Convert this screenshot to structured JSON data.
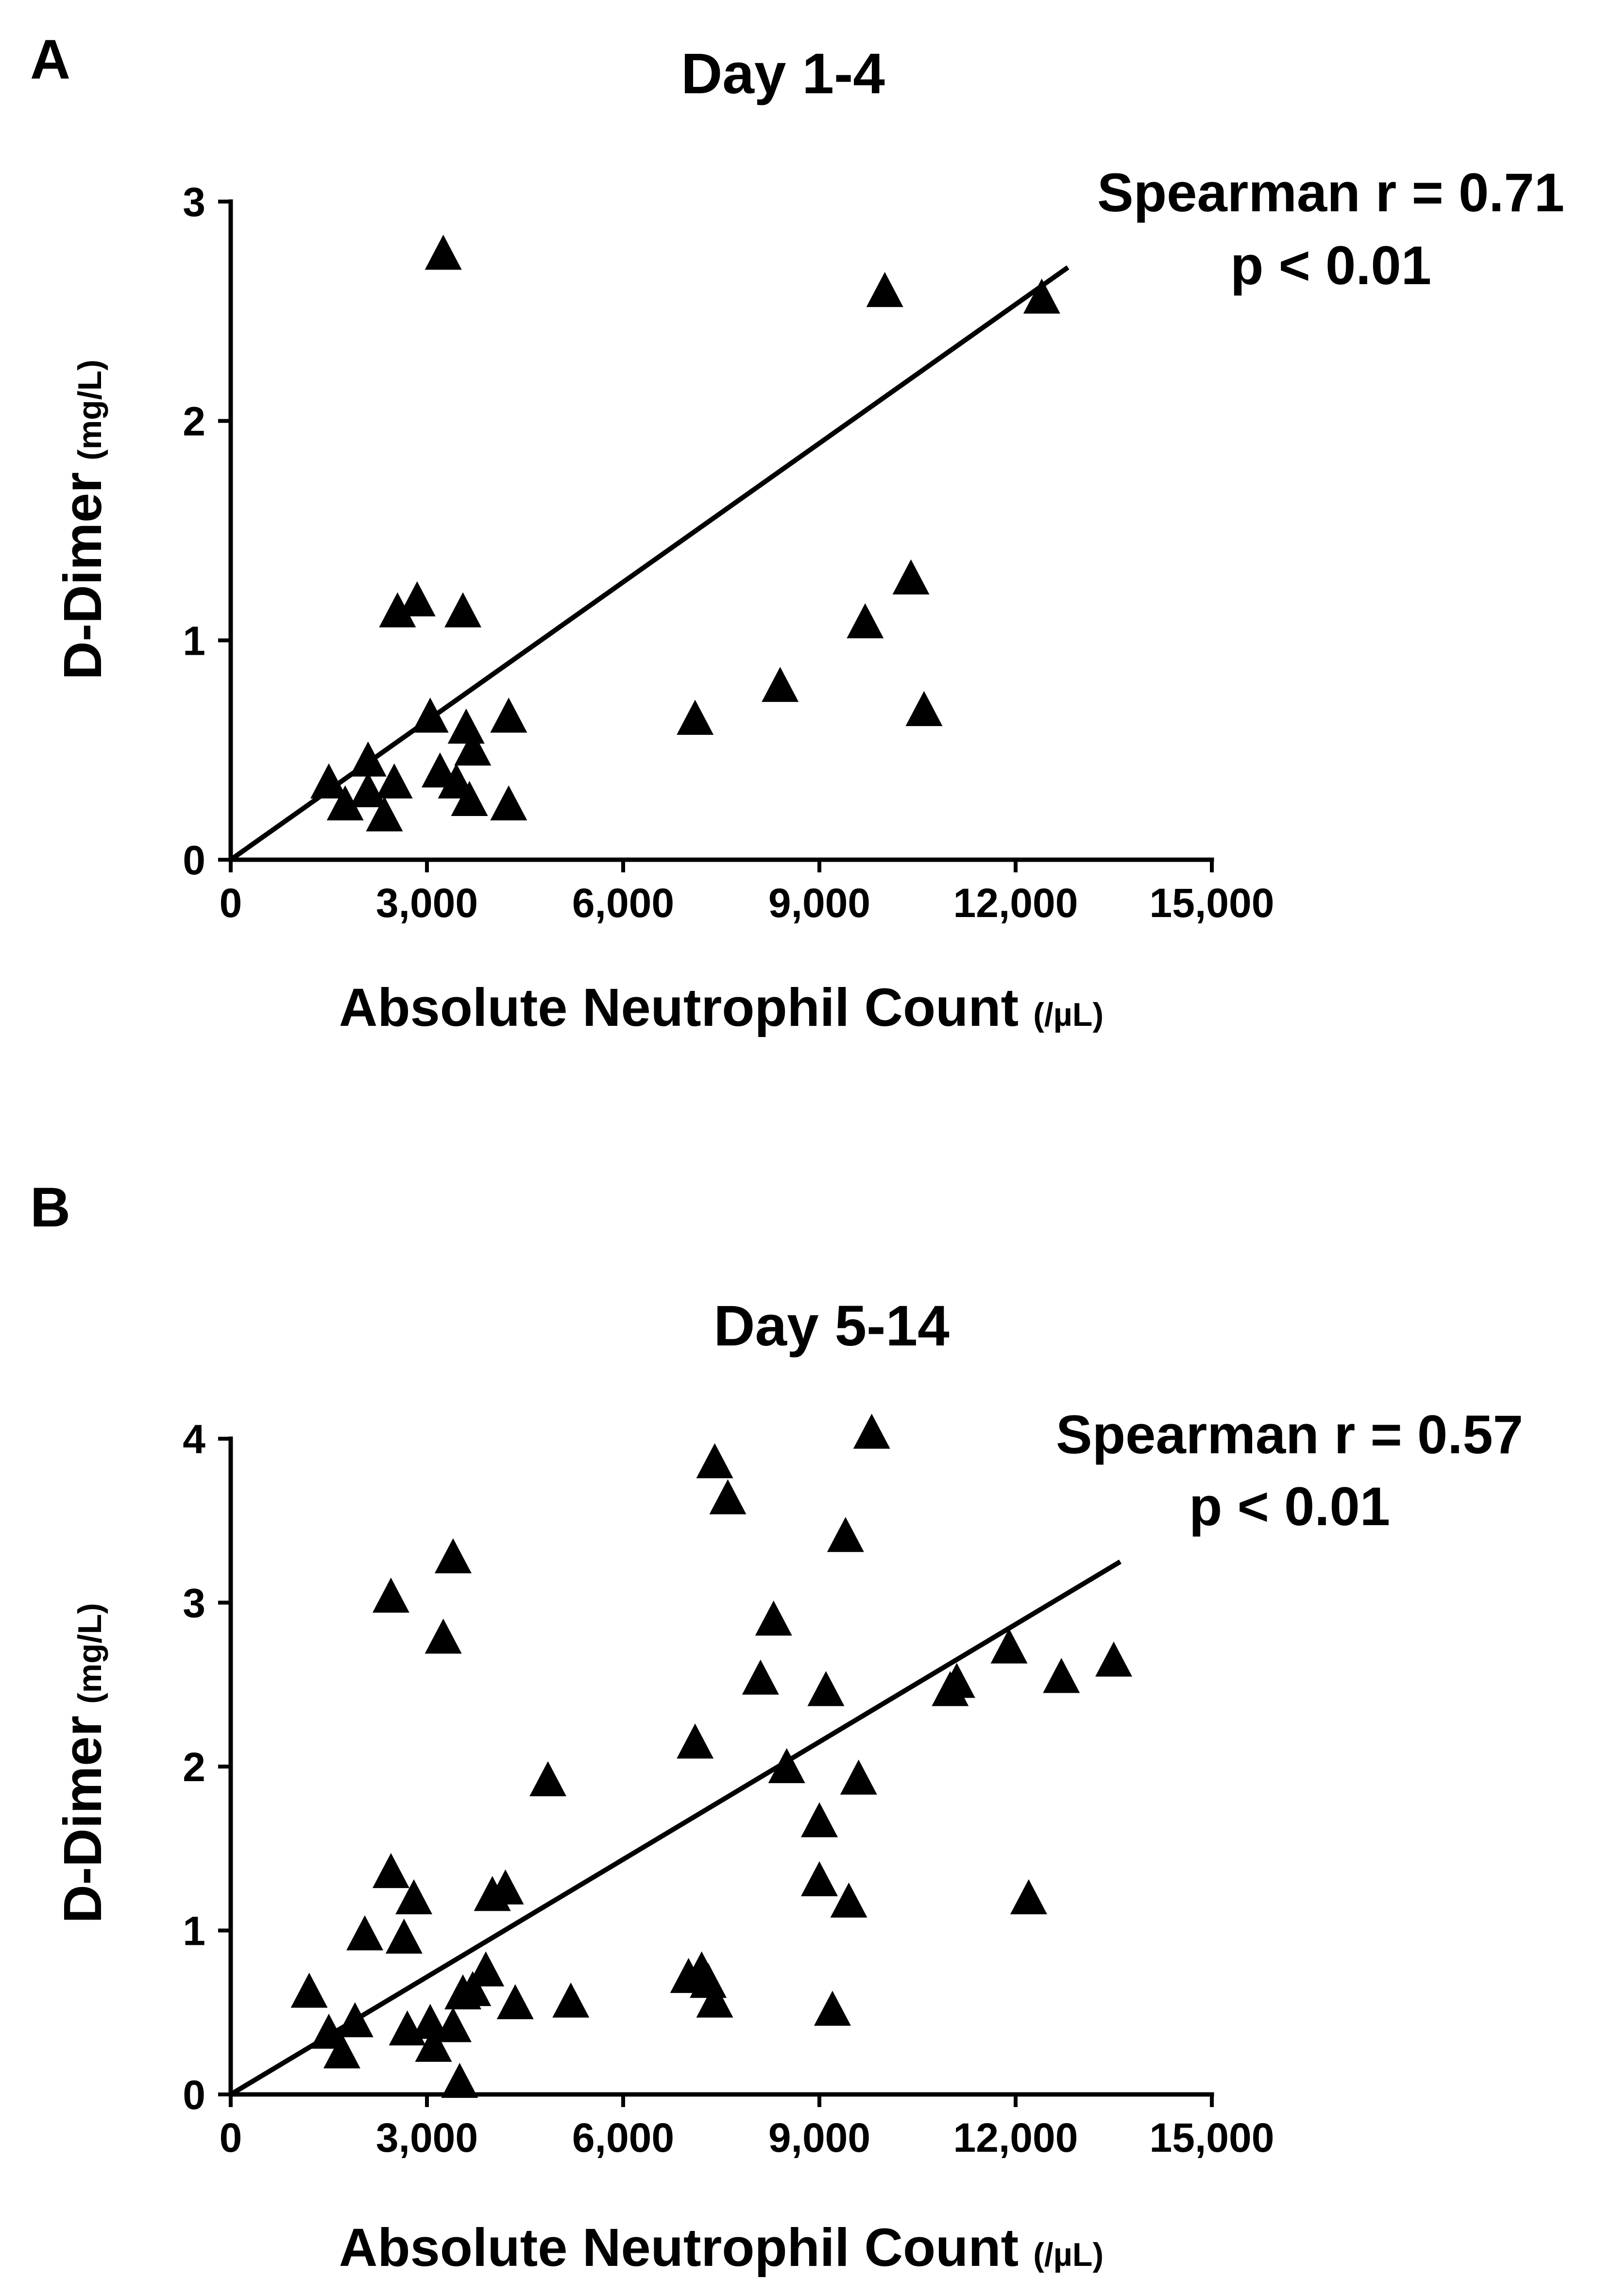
{
  "chart_data": [
    {
      "type": "scatter",
      "panel": "A",
      "title": "Day 1-4",
      "annotation": [
        "Spearman r = 0.71",
        "p < 0.01"
      ],
      "xlabel": "Absolute Neutrophil Count",
      "xlabel_unit": "(/µL)",
      "ylabel": "D-Dimer",
      "ylabel_unit": "(mg/L)",
      "xlim": [
        0,
        15000
      ],
      "ylim": [
        0,
        3
      ],
      "xticks": [
        0,
        3000,
        6000,
        9000,
        12000,
        15000
      ],
      "xtick_labels": [
        "0",
        "3,000",
        "6,000",
        "9,000",
        "12,000",
        "15,000"
      ],
      "yticks": [
        0,
        1,
        2,
        3
      ],
      "ytick_labels": [
        "0",
        "1",
        "2",
        "3"
      ],
      "marker": "triangle",
      "fit_line": {
        "x": [
          0,
          12800
        ],
        "y": [
          0,
          2.7
        ]
      },
      "series": [
        {
          "name": "Day 1-4",
          "x": [
            3250,
            10000,
            12400,
            2550,
            2850,
            3550,
            10400,
            9700,
            8400,
            7100,
            10600,
            1500,
            2100,
            1750,
            2100,
            2500,
            2350,
            3050,
            3200,
            3450,
            3600,
            3700,
            3650,
            4250,
            4250
          ],
          "y": [
            2.75,
            2.58,
            2.55,
            1.12,
            1.17,
            1.12,
            1.27,
            1.07,
            0.78,
            0.63,
            0.67,
            0.34,
            0.44,
            0.24,
            0.3,
            0.34,
            0.19,
            0.64,
            0.39,
            0.34,
            0.59,
            0.49,
            0.26,
            0.64,
            0.24
          ]
        }
      ]
    },
    {
      "type": "scatter",
      "panel": "B",
      "title": "Day 5-14",
      "annotation": [
        "Spearman r = 0.57",
        "p < 0.01"
      ],
      "xlabel": "Absolute Neutrophil Count",
      "xlabel_unit": "(/µL)",
      "ylabel": "D-Dimer",
      "ylabel_unit": "(mg/L)",
      "xlim": [
        0,
        15000
      ],
      "ylim": [
        0,
        4
      ],
      "xticks": [
        0,
        3000,
        6000,
        9000,
        12000,
        15000
      ],
      "xtick_labels": [
        "0",
        "3,000",
        "6,000",
        "9,000",
        "12,000",
        "15,000"
      ],
      "yticks": [
        0,
        1,
        2,
        3,
        4
      ],
      "ytick_labels": [
        "0",
        "1",
        "2",
        "3",
        "4"
      ],
      "marker": "triangle",
      "fit_line": {
        "x": [
          0,
          13600
        ],
        "y": [
          0,
          3.25
        ]
      },
      "series": [
        {
          "name": "Day 5-14",
          "x": [
            9800,
            7400,
            7600,
            9400,
            3400,
            2450,
            3250,
            8300,
            8100,
            9100,
            7100,
            8500,
            9600,
            9000,
            11900,
            11000,
            11100,
            12700,
            13500,
            4850,
            9000,
            9450,
            12200,
            2450,
            2800,
            4200,
            4000,
            2050,
            2650,
            3900,
            3700,
            3550,
            4350,
            5200,
            7000,
            7200,
            7300,
            7400,
            9200,
            1200,
            1500,
            1900,
            1700,
            2700,
            3050,
            3100,
            3400,
            3500
          ],
          "y": [
            4.02,
            3.84,
            3.62,
            3.39,
            3.26,
            3.02,
            2.77,
            2.88,
            2.52,
            2.45,
            2.13,
            1.98,
            1.91,
            1.65,
            2.71,
            2.45,
            2.5,
            2.53,
            2.63,
            1.9,
            1.29,
            1.16,
            1.18,
            1.34,
            1.18,
            1.24,
            1.2,
            0.96,
            0.94,
            0.74,
            0.62,
            0.6,
            0.54,
            0.55,
            0.7,
            0.74,
            0.67,
            0.55,
            0.5,
            0.61,
            0.36,
            0.43,
            0.24,
            0.38,
            0.42,
            0.28,
            0.4,
            0.06
          ]
        }
      ]
    }
  ]
}
